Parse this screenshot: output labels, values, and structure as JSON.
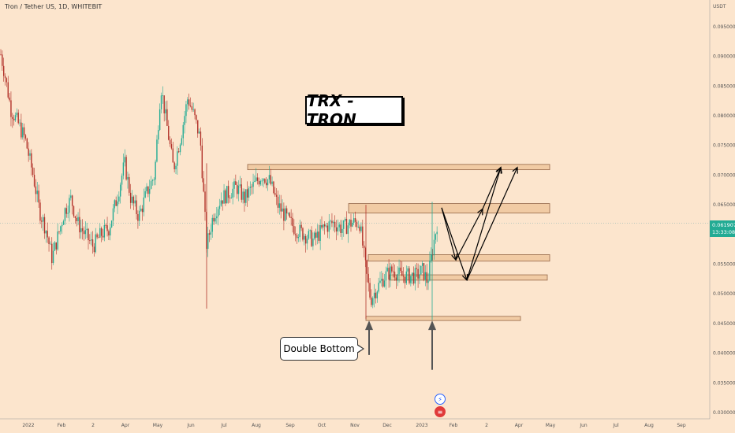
{
  "symbol_title": "Tron / Tether US, 1D, WHITEBIT",
  "title_box": "TRX - TRON",
  "annotation": "Double Bottom",
  "currency_label": "USDT",
  "price_tag": {
    "price": "0.061907",
    "countdown": "13:33:08"
  },
  "event_icons": [
    "lightning-icon",
    "us-flag-icon"
  ],
  "colors": {
    "background": "#fce5cd",
    "up": "#22ab94",
    "down": "#b2322a",
    "zone_fill": "#f0c9a0",
    "zone_border": "#8a5a3a"
  },
  "chart_data": {
    "type": "candlestick",
    "title": "TRX - TRON",
    "ylim": [
      0.029,
      0.1
    ],
    "y_ticks": [
      "0.095000",
      "0.090000",
      "0.085000",
      "0.080000",
      "0.075000",
      "0.070000",
      "0.065000",
      "0.060000",
      "0.055000",
      "0.050000",
      "0.045000",
      "0.040000",
      "0.035000",
      "0.030000"
    ],
    "x_ticks": [
      "2022",
      "Feb",
      "2",
      "Apr",
      "May",
      "Jun",
      "Jul",
      "Aug",
      "Sep",
      "Oct",
      "Nov",
      "Dec",
      "2023",
      "Feb",
      "2",
      "Apr",
      "May",
      "Jun",
      "Jul",
      "Aug",
      "Sep"
    ],
    "current_price": 0.061907,
    "price_path": [
      [
        0,
        0.091
      ],
      [
        6,
        0.087
      ],
      [
        14,
        0.081
      ],
      [
        22,
        0.079
      ],
      [
        32,
        0.076
      ],
      [
        42,
        0.07
      ],
      [
        50,
        0.064
      ],
      [
        58,
        0.061
      ],
      [
        66,
        0.056
      ],
      [
        74,
        0.06
      ],
      [
        82,
        0.064
      ],
      [
        90,
        0.066
      ],
      [
        98,
        0.062
      ],
      [
        108,
        0.06
      ],
      [
        118,
        0.058
      ],
      [
        128,
        0.06
      ],
      [
        138,
        0.061
      ],
      [
        148,
        0.066
      ],
      [
        158,
        0.072
      ],
      [
        166,
        0.066
      ],
      [
        176,
        0.063
      ],
      [
        186,
        0.067
      ],
      [
        196,
        0.07
      ],
      [
        204,
        0.085
      ],
      [
        212,
        0.078
      ],
      [
        220,
        0.071
      ],
      [
        230,
        0.077
      ],
      [
        238,
        0.083
      ],
      [
        246,
        0.08
      ],
      [
        254,
        0.076
      ],
      [
        262,
        0.058
      ],
      [
        270,
        0.063
      ],
      [
        280,
        0.066
      ],
      [
        290,
        0.067
      ],
      [
        300,
        0.068
      ],
      [
        310,
        0.066
      ],
      [
        320,
        0.068
      ],
      [
        332,
        0.07
      ],
      [
        342,
        0.069
      ],
      [
        352,
        0.065
      ],
      [
        362,
        0.063
      ],
      [
        374,
        0.061
      ],
      [
        386,
        0.06
      ],
      [
        398,
        0.059
      ],
      [
        410,
        0.061
      ],
      [
        422,
        0.062
      ],
      [
        434,
        0.061
      ],
      [
        446,
        0.062
      ],
      [
        456,
        0.062
      ],
      [
        464,
        0.054
      ],
      [
        470,
        0.049
      ],
      [
        478,
        0.051
      ],
      [
        488,
        0.053
      ],
      [
        498,
        0.054
      ],
      [
        508,
        0.053
      ],
      [
        518,
        0.053
      ],
      [
        528,
        0.053
      ],
      [
        536,
        0.054
      ],
      [
        542,
        0.052
      ],
      [
        548,
        0.057
      ],
      [
        554,
        0.0618
      ],
      [
        558,
        0.0619
      ]
    ],
    "spikes": [
      {
        "x": 262,
        "high": 0.072,
        "low": 0.0475
      },
      {
        "x": 464,
        "high": 0.065,
        "low": 0.0458
      },
      {
        "x": 548,
        "high": 0.0655,
        "low": 0.0456
      }
    ],
    "zones": [
      {
        "x_from": 314,
        "x_to": 697,
        "low": 0.0709,
        "high": 0.0718
      },
      {
        "x_from": 442,
        "x_to": 697,
        "low": 0.0636,
        "high": 0.0652
      },
      {
        "x_from": 467,
        "x_to": 697,
        "low": 0.0555,
        "high": 0.0566
      },
      {
        "x_from": 494,
        "x_to": 694,
        "low": 0.0523,
        "high": 0.0532
      },
      {
        "x_from": 464,
        "x_to": 660,
        "low": 0.0455,
        "high": 0.0462
      }
    ],
    "projection_arrows": [
      [
        [
          560,
          0.0645
        ],
        [
          578,
          0.0557
        ]
      ],
      [
        [
          578,
          0.0557
        ],
        [
          612,
          0.0643
        ]
      ],
      [
        [
          560,
          0.0645
        ],
        [
          592,
          0.0523
        ]
      ],
      [
        [
          592,
          0.0523
        ],
        [
          635,
          0.0713
        ]
      ],
      [
        [
          612,
          0.0643
        ],
        [
          635,
          0.0713
        ]
      ],
      [
        [
          592,
          0.0523
        ],
        [
          656,
          0.0713
        ]
      ]
    ],
    "up_arrows": [
      {
        "x": 468,
        "from": 0.0397,
        "to": 0.0455
      },
      {
        "x": 548,
        "from": 0.0372,
        "to": 0.0455
      }
    ]
  }
}
